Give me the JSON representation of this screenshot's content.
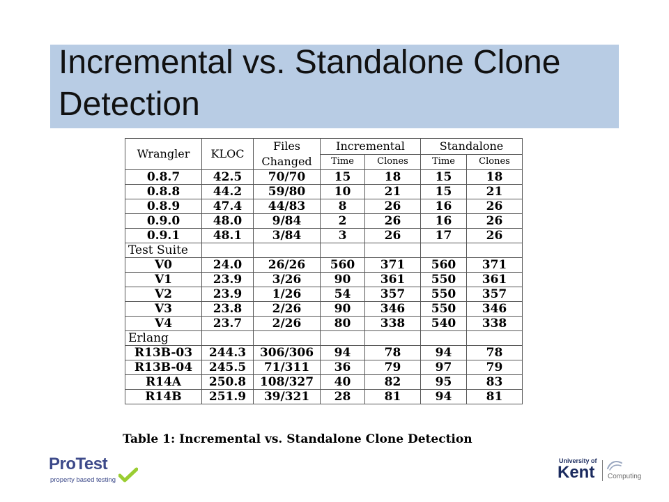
{
  "slide": {
    "title": "Incremental vs. Standalone Clone Detection"
  },
  "table": {
    "header": {
      "wrangler": "Wrangler",
      "kloc": "KLOC",
      "files_changed": "Files Changed",
      "incremental": "Incremental",
      "standalone": "Standalone",
      "time": "Time",
      "clones": "Clones"
    },
    "rows": [
      [
        "0.8.7",
        "42.5",
        "70/70",
        "15",
        "18",
        "15",
        "18"
      ],
      [
        "0.8.8",
        "44.2",
        "59/80",
        "10",
        "21",
        "15",
        "21"
      ],
      [
        "0.8.9",
        "47.4",
        "44/83",
        "8",
        "26",
        "16",
        "26"
      ],
      [
        "0.9.0",
        "48.0",
        "9/84",
        "2",
        "26",
        "16",
        "26"
      ],
      [
        "0.9.1",
        "48.1",
        "3/84",
        "3",
        "26",
        "17",
        "26"
      ],
      [
        "Test Suite"
      ],
      [
        "V0",
        "24.0",
        "26/26",
        "560",
        "371",
        "560",
        "371"
      ],
      [
        "V1",
        "23.9",
        "3/26",
        "90",
        "361",
        "550",
        "361"
      ],
      [
        "V2",
        "23.9",
        "1/26",
        "54",
        "357",
        "550",
        "357"
      ],
      [
        "V3",
        "23.8",
        "2/26",
        "90",
        "346",
        "550",
        "346"
      ],
      [
        "V4",
        "23.7",
        "2/26",
        "80",
        "338",
        "540",
        "338"
      ],
      [
        "Erlang"
      ],
      [
        "R13B-03",
        "244.3",
        "306/306",
        "94",
        "78",
        "94",
        "78"
      ],
      [
        "R13B-04",
        "245.5",
        "71/311",
        "36",
        "79",
        "97",
        "79"
      ],
      [
        "R14A",
        "250.8",
        "108/327",
        "40",
        "82",
        "95",
        "83"
      ],
      [
        "R14B",
        "251.9",
        "39/321",
        "28",
        "81",
        "94",
        "81"
      ]
    ],
    "caption": "Table 1: Incremental vs. Standalone Clone Detection"
  },
  "logos": {
    "protest": {
      "name": "ProTest",
      "tagline": "property based testing",
      "colors": {
        "text": "#3d4a8a",
        "check": "#9acd32"
      }
    },
    "kent": {
      "university": "University of",
      "name": "Kent",
      "department": "Computing",
      "colors": {
        "text": "#1a2a5e"
      }
    }
  },
  "colors": {
    "title_band": "#b8cce4"
  }
}
